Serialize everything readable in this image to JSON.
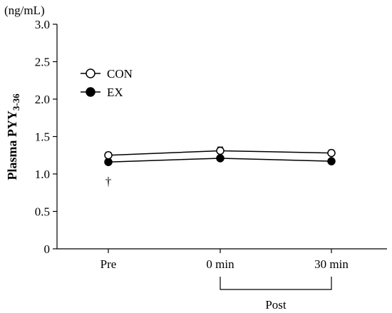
{
  "chart_data": {
    "type": "line",
    "unit_label": "(ng/mL)",
    "ylabel": "Plasma PYY",
    "ylabel_sub": "3-36",
    "xlabel": "",
    "categories": [
      "Pre",
      "0 min",
      "30 min"
    ],
    "ylim": [
      0,
      3.0
    ],
    "yticks": [
      0,
      0.5,
      1.0,
      1.5,
      2.0,
      2.5,
      3.0
    ],
    "ytick_labels": [
      "0",
      "0.5",
      "1.0",
      "1.5",
      "2.0",
      "2.5",
      "3.0"
    ],
    "series": [
      {
        "name": "CON",
        "values": [
          1.25,
          1.31,
          1.28
        ],
        "errors": [
          0.04,
          0.05,
          0.04
        ],
        "marker": "open-circle"
      },
      {
        "name": "EX",
        "values": [
          1.16,
          1.21,
          1.17
        ],
        "errors": [
          0.03,
          0.02,
          0.02
        ],
        "marker": "filled-circle"
      }
    ],
    "annotations": [
      {
        "text": "†",
        "category": "Pre"
      }
    ],
    "bracket": {
      "label": "Post",
      "from": "0 min",
      "to": "30 min"
    },
    "legend_position": "top-left",
    "grid": false,
    "colors": {
      "line": "#000000",
      "open_fill": "#ffffff",
      "filled_fill": "#000000"
    }
  }
}
